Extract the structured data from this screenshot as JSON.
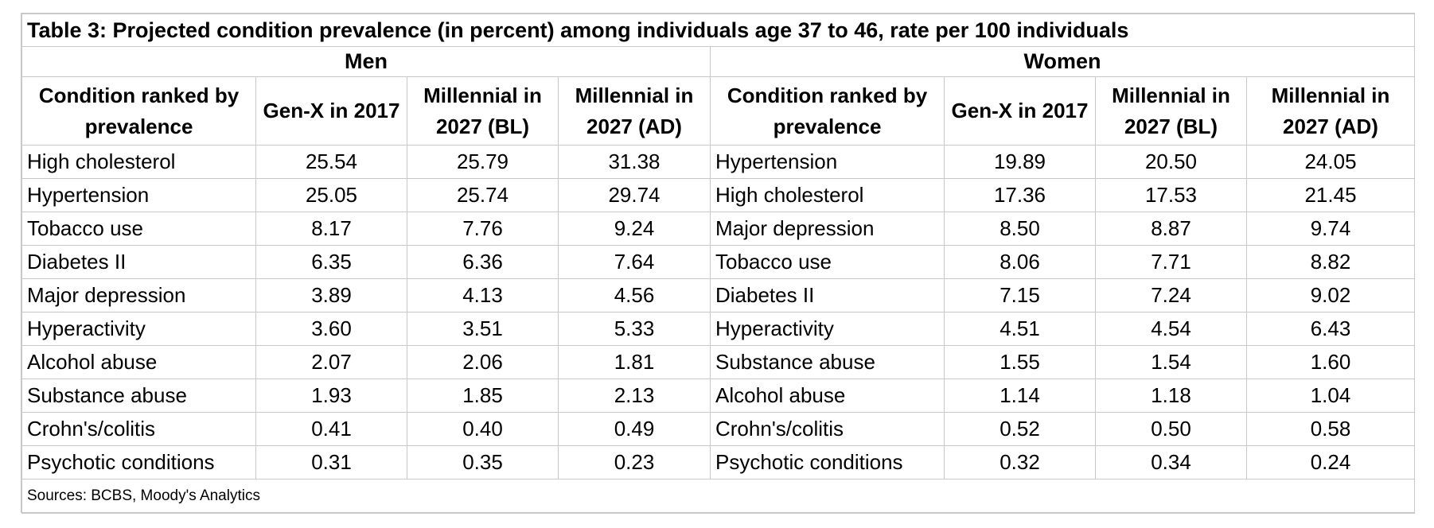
{
  "title": "Table 3: Projected condition prevalence (in percent) among individuals age 37 to 46, rate per 100 individuals",
  "groups": [
    "Men",
    "Women"
  ],
  "headers": {
    "men": [
      "Condition ranked by prevalence",
      "Gen-X in 2017",
      "Millennial in 2027 (BL)",
      "Millennial in 2027 (AD)"
    ],
    "women": [
      "Condition ranked by prevalence",
      "Gen-X in 2017",
      "Millennial in 2027 (BL)",
      "Millennial in 2027 (AD)"
    ]
  },
  "rows": [
    {
      "men": [
        "High cholesterol",
        "25.54",
        "25.79",
        "31.38"
      ],
      "women": [
        "Hypertension",
        "19.89",
        "20.50",
        "24.05"
      ]
    },
    {
      "men": [
        "Hypertension",
        "25.05",
        "25.74",
        "29.74"
      ],
      "women": [
        "High cholesterol",
        "17.36",
        "17.53",
        "21.45"
      ]
    },
    {
      "men": [
        "Tobacco use",
        "8.17",
        "7.76",
        "9.24"
      ],
      "women": [
        "Major depression",
        "8.50",
        "8.87",
        "9.74"
      ]
    },
    {
      "men": [
        "Diabetes II",
        "6.35",
        "6.36",
        "7.64"
      ],
      "women": [
        "Tobacco use",
        "8.06",
        "7.71",
        "8.82"
      ]
    },
    {
      "men": [
        "Major depression",
        "3.89",
        "4.13",
        "4.56"
      ],
      "women": [
        "Diabetes II",
        "7.15",
        "7.24",
        "9.02"
      ]
    },
    {
      "men": [
        "Hyperactivity",
        "3.60",
        "3.51",
        "5.33"
      ],
      "women": [
        "Hyperactivity",
        "4.51",
        "4.54",
        "6.43"
      ]
    },
    {
      "men": [
        "Alcohol abuse",
        "2.07",
        "2.06",
        "1.81"
      ],
      "women": [
        "Substance abuse",
        "1.55",
        "1.54",
        "1.60"
      ]
    },
    {
      "men": [
        "Substance abuse",
        "1.93",
        "1.85",
        "2.13"
      ],
      "women": [
        "Alcohol abuse",
        "1.14",
        "1.18",
        "1.04"
      ]
    },
    {
      "men": [
        "Crohn's/colitis",
        "0.41",
        "0.40",
        "0.49"
      ],
      "women": [
        "Crohn's/colitis",
        "0.52",
        "0.50",
        "0.58"
      ]
    },
    {
      "men": [
        "Psychotic conditions",
        "0.31",
        "0.35",
        "0.23"
      ],
      "women": [
        "Psychotic conditions",
        "0.32",
        "0.34",
        "0.24"
      ]
    }
  ],
  "source": "Sources: BCBS, Moody's Analytics"
}
